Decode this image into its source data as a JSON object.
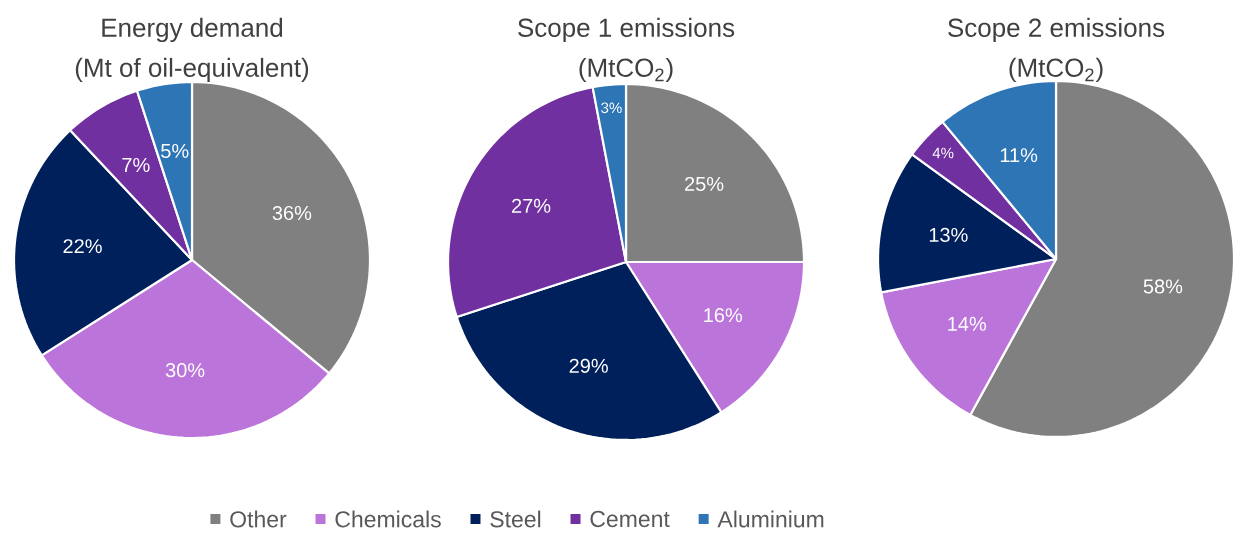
{
  "chart_data": [
    {
      "type": "pie",
      "title": "Energy demand",
      "subtitle": "(Mt of oil-equivalent)",
      "categories": [
        "Other",
        "Chemicals",
        "Steel",
        "Cement",
        "Aluminium"
      ],
      "values": [
        36,
        30,
        22,
        7,
        5
      ],
      "value_labels": [
        "36%",
        "30%",
        "22%",
        "7%",
        "5%"
      ],
      "colors": [
        "#808080",
        "#bb74d9",
        "#00205b",
        "#7030a0",
        "#2e75b6"
      ],
      "legend": "bottom"
    },
    {
      "type": "pie",
      "title": "Scope 1 emissions",
      "subtitle": "(MtCO$_{2}$)",
      "categories": [
        null,
        null,
        null,
        null,
        null
      ],
      "values": [
        25,
        16,
        29,
        27,
        3
      ],
      "value_labels": [
        "25%",
        "16%",
        "29%",
        "27%",
        "3%"
      ],
      "colors": [
        "#808080",
        "#bb74d9",
        "#00205b",
        "#7030a0",
        "#2e75b6"
      ]
    },
    {
      "type": "pie",
      "title": "Scope 2 emissions",
      "subtitle": "(MtCO$_{2}$)",
      "categories": [
        null,
        null,
        null,
        null,
        null
      ],
      "values": [
        58,
        14,
        13,
        4,
        11
      ],
      "value_labels": [
        "58%",
        "14%",
        "13%",
        "4%",
        "11%"
      ],
      "colors": [
        "#808080",
        "#bb74d9",
        "#00205b",
        "#7030a0",
        "#2e75b6"
      ]
    }
  ]
}
